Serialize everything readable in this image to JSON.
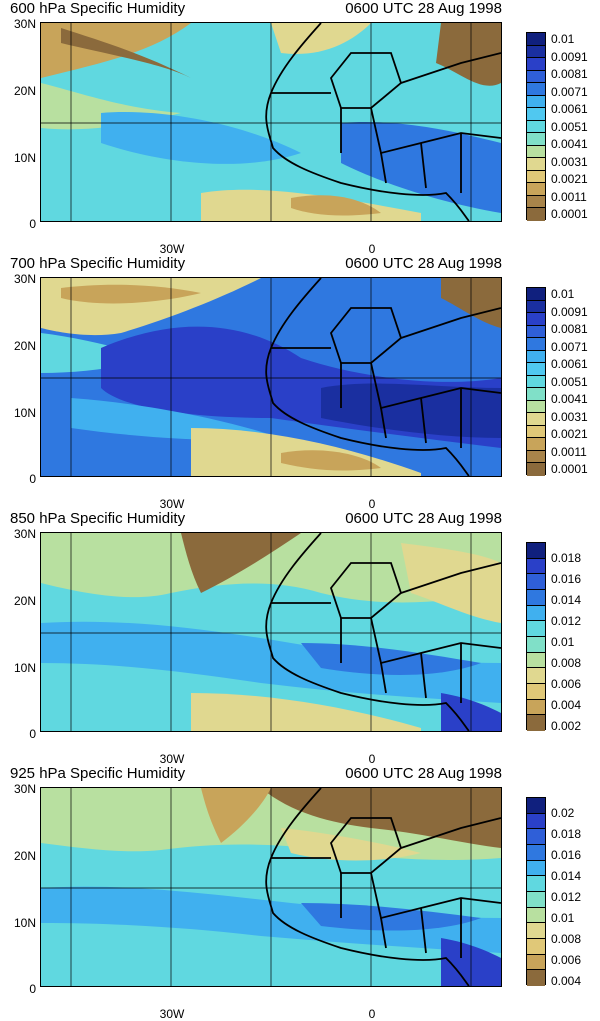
{
  "map": {
    "type": "map",
    "y_ticks": [
      "30N",
      "20N",
      "10N",
      "0"
    ],
    "x_ticks": [
      "30W",
      "0"
    ],
    "panels": [
      {
        "title": "600 hPa Specific Humidity",
        "time": "0600 UTC 28 Aug 1998",
        "levels": [
          "0.01",
          "0.0091",
          "0.0081",
          "0.0071",
          "0.0061",
          "0.0051",
          "0.0041",
          "0.0031",
          "0.0021",
          "0.0011",
          "0.0001"
        ],
        "boxes": 15
      },
      {
        "title": "700 hPa Specific Humidity",
        "time": "0600 UTC 28 Aug 1998",
        "levels": [
          "0.01",
          "0.0091",
          "0.0081",
          "0.0071",
          "0.0061",
          "0.0051",
          "0.0041",
          "0.0031",
          "0.0021",
          "0.0011",
          "0.0001"
        ],
        "boxes": 15
      },
      {
        "title": "850 hPa Specific Humidity",
        "time": "0600 UTC 28 Aug 1998",
        "levels": [
          "0.018",
          "0.016",
          "0.014",
          "0.012",
          "0.01",
          "0.008",
          "0.006",
          "0.004",
          "0.002"
        ],
        "boxes": 12
      },
      {
        "title": "925 hPa Specific Humidity",
        "time": "0600 UTC 28 Aug 1998",
        "levels": [
          "0.02",
          "0.018",
          "0.016",
          "0.014",
          "0.012",
          "0.01",
          "0.008",
          "0.006",
          "0.004"
        ],
        "boxes": 12
      }
    ]
  },
  "colors": {
    "dry_brown": "#8b6a3c",
    "tan": "#c8a45a",
    "light_yellow": "#e0d890",
    "pale_green": "#b8e0a0",
    "light_cyan": "#60d8e0",
    "sky_blue": "#40b0ef",
    "mid_blue": "#2f78e0",
    "deep_blue": "#2a40c8",
    "navy": "#10207e"
  }
}
